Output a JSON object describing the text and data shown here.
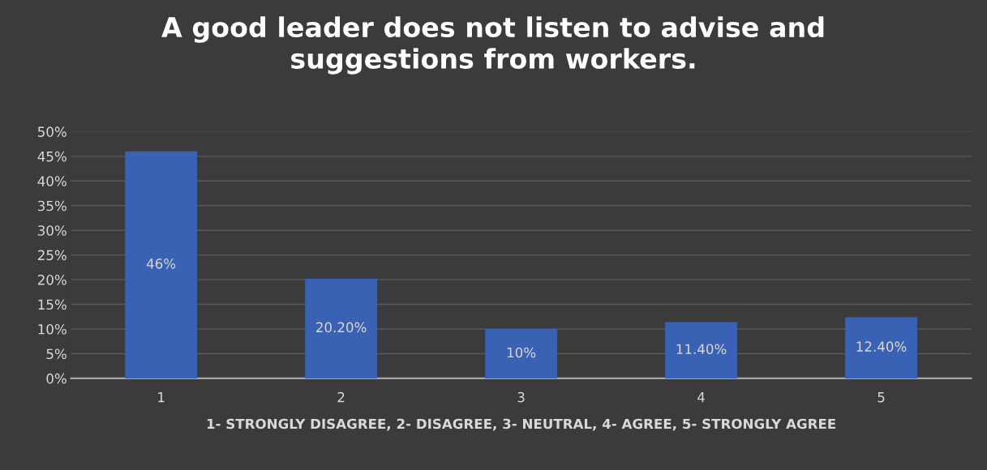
{
  "chart_data": {
    "type": "bar",
    "title": "A good leader does not listen to advise and\nsuggestions from workers.",
    "xlabel": "1- STRONGLY DISAGREE, 2- DISAGREE, 3- NEUTRAL, 4- AGREE, 5- STRONGLY AGREE",
    "categories": [
      "1",
      "2",
      "3",
      "4",
      "5"
    ],
    "values": [
      46,
      20.2,
      10,
      11.4,
      12.4
    ],
    "value_labels": [
      "46%",
      "20.20%",
      "10%",
      "11.40%",
      "12.40%"
    ],
    "color": "#3a62b4",
    "ylim": [
      0,
      50
    ],
    "yticks": [
      {
        "value": 0,
        "label": "0%"
      },
      {
        "value": 5,
        "label": "5%"
      },
      {
        "value": 10,
        "label": "10%"
      },
      {
        "value": 15,
        "label": "15%"
      },
      {
        "value": 20,
        "label": "20%"
      },
      {
        "value": 25,
        "label": "25%"
      },
      {
        "value": 30,
        "label": "30%"
      },
      {
        "value": 35,
        "label": "35%"
      },
      {
        "value": 40,
        "label": "40%"
      },
      {
        "value": 45,
        "label": "45%"
      },
      {
        "value": 50,
        "label": "50%"
      }
    ],
    "grid": "y"
  }
}
